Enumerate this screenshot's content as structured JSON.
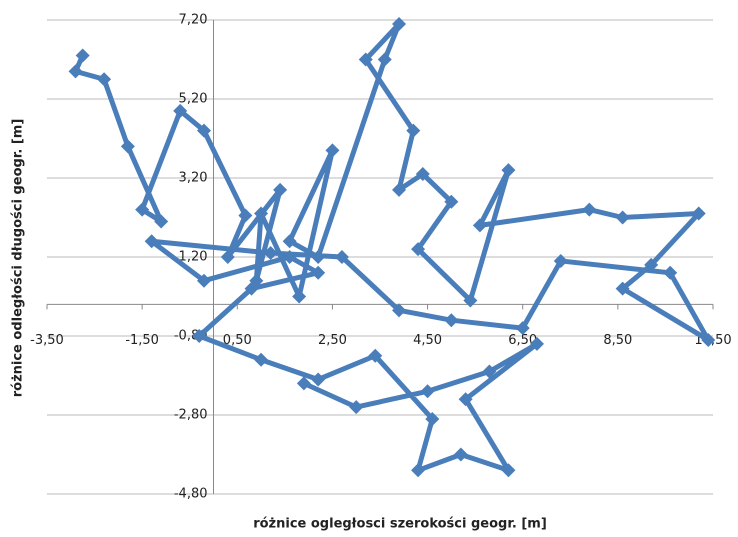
{
  "chart_data": {
    "type": "scatter-line",
    "x_label": "różnice ogległosci szerokości geogr. [m]",
    "y_label": "różnice odległości długości geogr. [m]",
    "series": [
      {
        "color": "#4a7ebb",
        "x": [
          -2.75,
          -2.9,
          -2.3,
          -1.8,
          -1.1,
          -1.5,
          -0.7,
          -0.2,
          0.67,
          0.3,
          1.4,
          0.9,
          1.0,
          1.8,
          2.5,
          1.6,
          2.2,
          3.6,
          3.9,
          3.2,
          4.2,
          3.9,
          4.4,
          5.0,
          4.3,
          5.4,
          6.2,
          5.6,
          7.9,
          8.6,
          10.2,
          9.2,
          8.6,
          10.4,
          9.6,
          7.3,
          6.5,
          5.0,
          3.9,
          2.7,
          1.2,
          -1.3,
          -0.2,
          1.6,
          2.2,
          0.8,
          -0.3,
          1.0,
          2.2,
          3.4,
          4.6,
          4.3,
          5.2,
          6.2,
          5.3,
          6.8,
          5.8,
          4.5,
          3.0,
          1.9
        ],
        "values": [
          6.3,
          5.9,
          5.7,
          4.0,
          2.1,
          2.4,
          4.9,
          4.4,
          2.25,
          1.2,
          2.9,
          0.6,
          2.3,
          0.2,
          3.9,
          1.6,
          1.2,
          6.2,
          7.1,
          6.2,
          4.4,
          2.9,
          3.3,
          2.6,
          1.4,
          0.1,
          3.4,
          2.0,
          2.4,
          2.2,
          2.3,
          1.0,
          0.4,
          -0.9,
          0.8,
          1.1,
          -0.6,
          -0.4,
          -0.15,
          1.2,
          1.3,
          1.6,
          0.6,
          1.2,
          0.8,
          0.4,
          -0.8,
          -1.4,
          -1.9,
          -1.3,
          -2.9,
          -4.2,
          -3.8,
          -4.2,
          -2.4,
          -1.0,
          -1.7,
          -2.2,
          -2.6,
          -2.0
        ]
      }
    ],
    "xlim": [
      -3.5,
      10.5
    ],
    "xticks": [
      {
        "value": -3.5,
        "label": "-3,50"
      },
      {
        "value": -1.5,
        "label": "-1,50"
      },
      {
        "value": 0.5,
        "label": "0,50"
      },
      {
        "value": 2.5,
        "label": "2,50"
      },
      {
        "value": 4.5,
        "label": "4,50"
      },
      {
        "value": 6.5,
        "label": "6,50"
      },
      {
        "value": 8.5,
        "label": "8,50"
      },
      {
        "value": 10.5,
        "label": "10,50"
      }
    ],
    "ylim": [
      -4.8,
      7.2
    ],
    "yticks": [
      {
        "value": -4.8,
        "label": "-4,80"
      },
      {
        "value": -2.8,
        "label": "-2,80"
      },
      {
        "value": -0.8,
        "label": "-0,80"
      },
      {
        "value": 1.2,
        "label": "1,20"
      },
      {
        "value": 3.2,
        "label": "3,20"
      },
      {
        "value": 5.2,
        "label": "5,20"
      },
      {
        "value": 7.2,
        "label": "7,20"
      }
    ],
    "grid": true
  }
}
